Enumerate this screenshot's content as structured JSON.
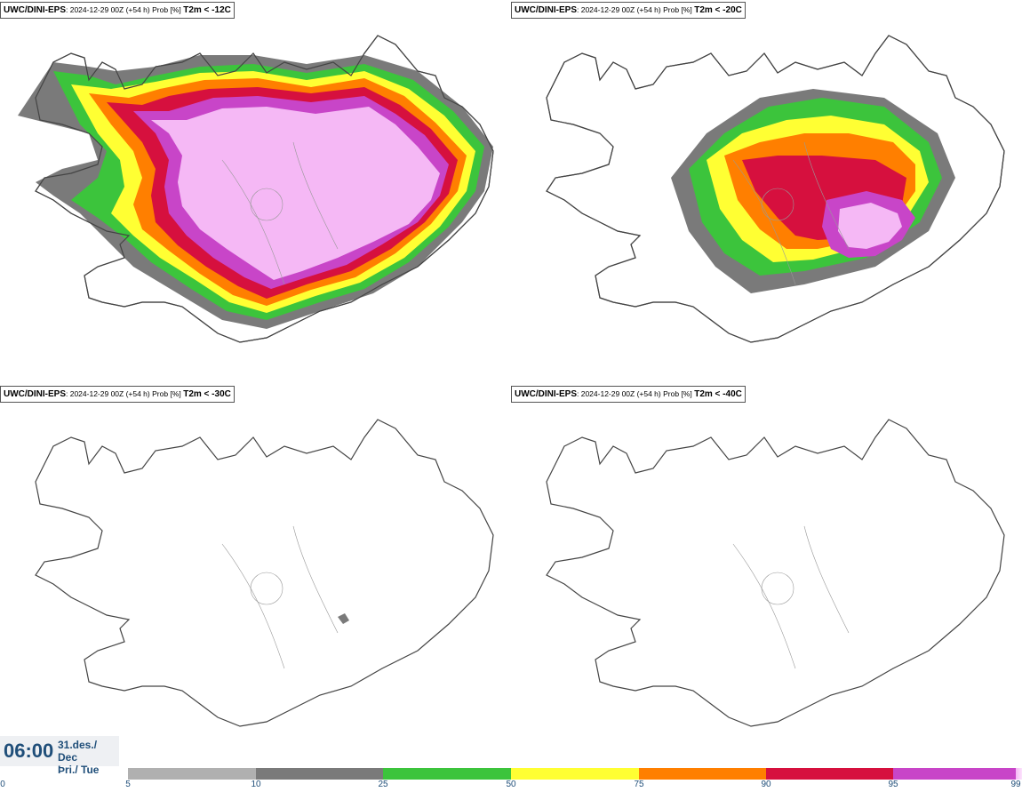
{
  "panels": [
    {
      "model": "UWC/DINI-EPS",
      "meta": ": 2024-12-29 00Z (+54 h) Prob [%]",
      "threshold": "T2m < -12C"
    },
    {
      "model": "UWC/DINI-EPS",
      "meta": ": 2024-12-29 00Z (+54 h) Prob [%]",
      "threshold": "T2m < -20C"
    },
    {
      "model": "UWC/DINI-EPS",
      "meta": ": 2024-12-29 00Z (+54 h) Prob [%]",
      "threshold": "T2m < -30C"
    },
    {
      "model": "UWC/DINI-EPS",
      "meta": ": 2024-12-29 00Z (+54 h) Prob [%]",
      "threshold": "T2m < -40C"
    }
  ],
  "valid_time": {
    "time": "06:00",
    "date_line1": "31.des./ Dec",
    "date_line2": "Þri./ Tue"
  },
  "legend": {
    "ticks": [
      "0",
      "5",
      "10",
      "25",
      "50",
      "75",
      "90",
      "95",
      "99"
    ],
    "colors": [
      "#b0b0b0",
      "#7a7a7a",
      "#3cc43c",
      "#ffff33",
      "#ff7f00",
      "#d6103e",
      "#c845c8",
      "#f5b8f5"
    ]
  },
  "colors": {
    "coast": "#444444",
    "rivers": "#999999",
    "prob_light_grey": "#b0b0b0",
    "prob_dark_grey": "#7a7a7a",
    "prob_green": "#3cc43c",
    "prob_yellow": "#ffff33",
    "prob_orange": "#ff7f00",
    "prob_red": "#d6103e",
    "prob_magenta": "#c845c8",
    "prob_pink": "#f5b8f5"
  }
}
